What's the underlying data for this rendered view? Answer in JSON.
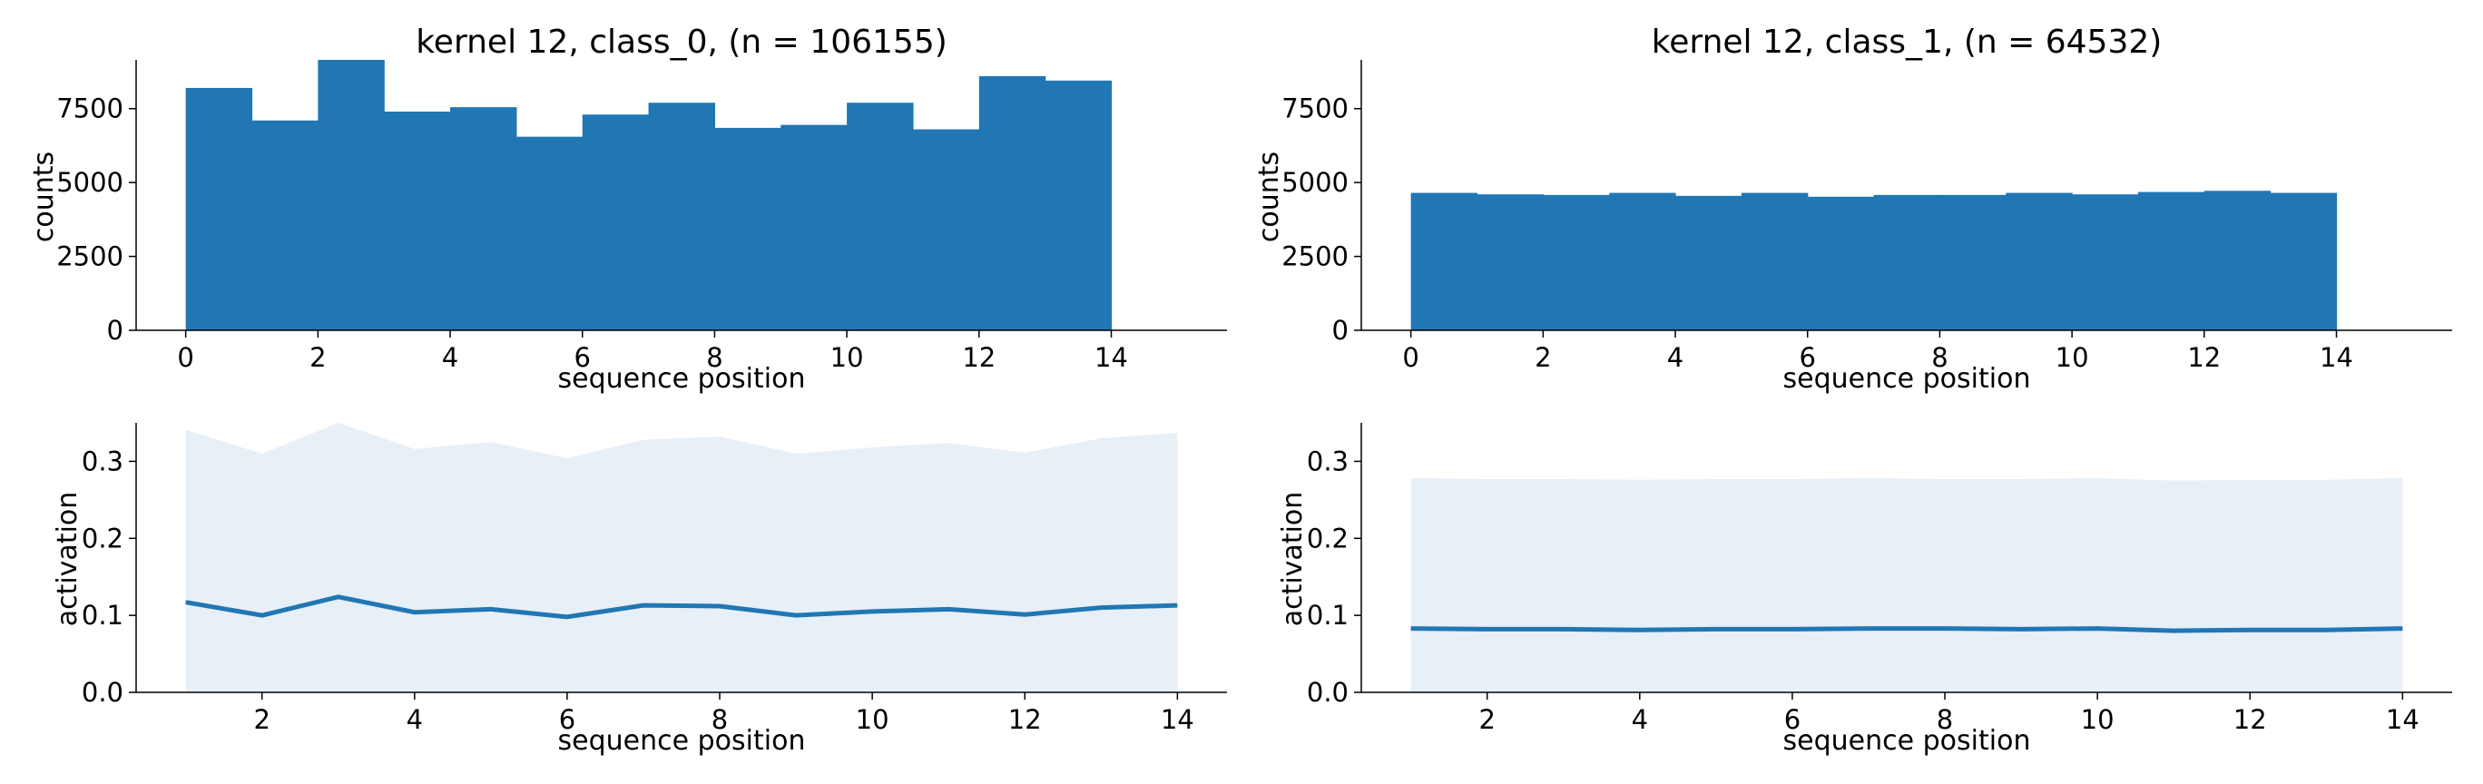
{
  "colors": {
    "bar": "#2077b4",
    "line": "#2077b4",
    "band": "#e7eff7",
    "axis": "#000000"
  },
  "chart_data": [
    {
      "type": "bar",
      "title": "kernel 12, class_0, (n = 106155)",
      "xlabel": "sequence position",
      "ylabel": "counts",
      "bin_edges": [
        0,
        1,
        2,
        3,
        4,
        5,
        6,
        7,
        8,
        9,
        10,
        11,
        12,
        13,
        14
      ],
      "values": [
        8200,
        7100,
        9150,
        7400,
        7550,
        6550,
        7300,
        7700,
        6850,
        6950,
        7700,
        6800,
        8600,
        8450
      ],
      "xlim": [
        -0.75,
        15.75
      ],
      "ylim": [
        0,
        9150
      ],
      "xticks": [
        "0",
        "2",
        "4",
        "6",
        "8",
        "10",
        "12",
        "14"
      ],
      "yticks": [
        "0",
        "2500",
        "5000",
        "7500"
      ]
    },
    {
      "type": "bar",
      "title": "kernel 12, class_1, (n = 64532)",
      "xlabel": "sequence position",
      "ylabel": "counts",
      "bin_edges": [
        0,
        1,
        2,
        3,
        4,
        5,
        6,
        7,
        8,
        9,
        10,
        11,
        12,
        13,
        14
      ],
      "values": [
        4650,
        4600,
        4580,
        4650,
        4550,
        4650,
        4520,
        4580,
        4580,
        4650,
        4600,
        4680,
        4720,
        4650
      ],
      "xlim": [
        -0.75,
        15.75
      ],
      "ylim": [
        0,
        9150
      ],
      "xticks": [
        "0",
        "2",
        "4",
        "6",
        "8",
        "10",
        "12",
        "14"
      ],
      "yticks": [
        "0",
        "2500",
        "5000",
        "7500"
      ]
    },
    {
      "type": "line",
      "xlabel": "sequence position",
      "ylabel": "activation",
      "x": [
        1,
        2,
        3,
        4,
        5,
        6,
        7,
        8,
        9,
        10,
        11,
        12,
        13,
        14
      ],
      "mean": [
        0.117,
        0.1,
        0.124,
        0.104,
        0.108,
        0.098,
        0.113,
        0.112,
        0.1,
        0.105,
        0.108,
        0.101,
        0.11,
        0.113
      ],
      "upper": [
        0.341,
        0.31,
        0.35,
        0.316,
        0.325,
        0.304,
        0.328,
        0.332,
        0.31,
        0.318,
        0.324,
        0.311,
        0.33,
        0.337
      ],
      "lower": [
        0,
        0,
        0,
        0,
        0,
        0,
        0,
        0,
        0,
        0,
        0,
        0,
        0,
        0
      ],
      "xlim": [
        0.35,
        14.65
      ],
      "ylim": [
        0,
        0.35
      ],
      "xticks": [
        "2",
        "4",
        "6",
        "8",
        "10",
        "12",
        "14"
      ],
      "yticks": [
        "0.0",
        "0.1",
        "0.2",
        "0.3"
      ]
    },
    {
      "type": "line",
      "xlabel": "sequence position",
      "ylabel": "activation",
      "x": [
        1,
        2,
        3,
        4,
        5,
        6,
        7,
        8,
        9,
        10,
        11,
        12,
        13,
        14
      ],
      "mean": [
        0.083,
        0.082,
        0.082,
        0.081,
        0.082,
        0.082,
        0.083,
        0.083,
        0.082,
        0.083,
        0.08,
        0.081,
        0.081,
        0.083
      ],
      "upper": [
        0.278,
        0.277,
        0.277,
        0.276,
        0.277,
        0.277,
        0.278,
        0.277,
        0.277,
        0.278,
        0.275,
        0.276,
        0.276,
        0.278
      ],
      "lower": [
        0,
        0,
        0,
        0,
        0,
        0,
        0,
        0,
        0,
        0,
        0,
        0,
        0,
        0
      ],
      "xlim": [
        0.35,
        14.65
      ],
      "ylim": [
        0,
        0.35
      ],
      "xticks": [
        "2",
        "4",
        "6",
        "8",
        "10",
        "12",
        "14"
      ],
      "yticks": [
        "0.0",
        "0.1",
        "0.2",
        "0.3"
      ]
    }
  ]
}
